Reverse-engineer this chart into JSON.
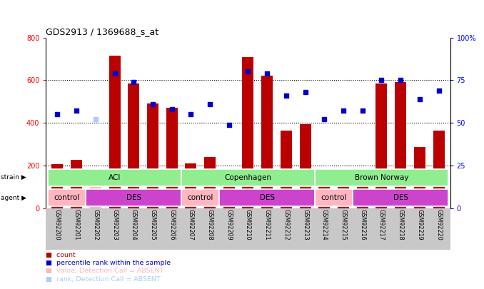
{
  "title": "GDS2913 / 1369688_s_at",
  "samples": [
    "GSM92200",
    "GSM92201",
    "GSM92202",
    "GSM92203",
    "GSM92204",
    "GSM92205",
    "GSM92206",
    "GSM92207",
    "GSM92208",
    "GSM92209",
    "GSM92210",
    "GSM92211",
    "GSM92212",
    "GSM92213",
    "GSM92214",
    "GSM92215",
    "GSM92216",
    "GSM92217",
    "GSM92218",
    "GSM92219",
    "GSM92220"
  ],
  "counts": [
    205,
    225,
    160,
    715,
    585,
    490,
    470,
    210,
    240,
    115,
    710,
    620,
    365,
    395,
    175,
    125,
    175,
    585,
    590,
    285,
    365
  ],
  "absent": [
    false,
    false,
    true,
    false,
    false,
    false,
    false,
    false,
    false,
    false,
    false,
    false,
    false,
    false,
    false,
    false,
    false,
    false,
    false,
    false,
    false
  ],
  "percentile": [
    55,
    57,
    52,
    79,
    74,
    61,
    58,
    55,
    61,
    49,
    80,
    79,
    66,
    68,
    52,
    57,
    57,
    75,
    75,
    64,
    69
  ],
  "bar_color_normal": "#BB0000",
  "bar_color_absent": "#FFB6C1",
  "dot_color_normal": "#0000CC",
  "dot_color_absent": "#AACCFF",
  "ylim_left": [
    0,
    800
  ],
  "ylim_right": [
    0,
    100
  ],
  "yticks_left": [
    0,
    200,
    400,
    600,
    800
  ],
  "ytick_labels_right": [
    "0",
    "25",
    "50",
    "75",
    "100%"
  ],
  "strain_color": "#90EE90",
  "agent_control_color": "#FFB6C1",
  "agent_des_color": "#CC44CC",
  "tick_area_color": "#C8C8C8",
  "background_color": "#ffffff",
  "strain_spans": [
    [
      -0.5,
      6.5,
      "ACI"
    ],
    [
      6.5,
      13.5,
      "Copenhagen"
    ],
    [
      13.5,
      20.5,
      "Brown Norway"
    ]
  ],
  "agent_spans": [
    [
      -0.5,
      1.5,
      "control",
      "#FFB6C1"
    ],
    [
      1.5,
      6.5,
      "DES",
      "#CC44CC"
    ],
    [
      6.5,
      8.5,
      "control",
      "#FFB6C1"
    ],
    [
      8.5,
      13.5,
      "DES",
      "#CC44CC"
    ],
    [
      13.5,
      15.5,
      "control",
      "#FFB6C1"
    ],
    [
      15.5,
      20.5,
      "DES",
      "#CC44CC"
    ]
  ]
}
